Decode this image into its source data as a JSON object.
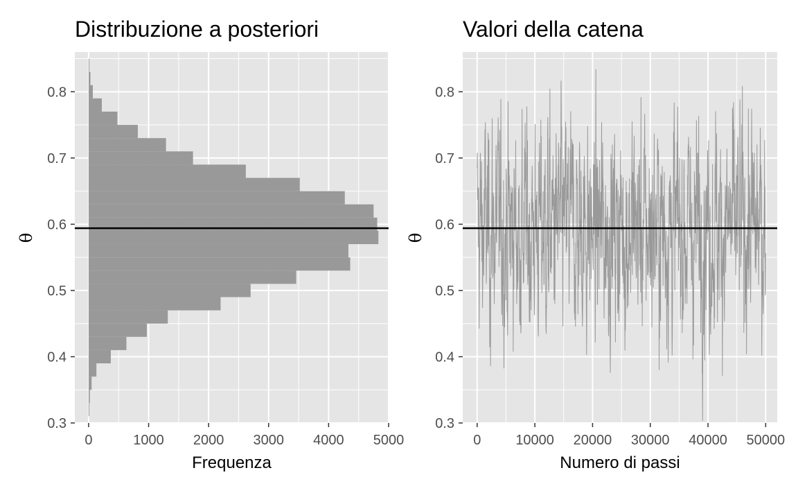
{
  "chart_data": [
    {
      "type": "bar",
      "title": "Distribuzione a posteriori",
      "xlabel": "Frequenza",
      "ylabel": "θ",
      "orientation": "horizontal",
      "xlim": [
        -230,
        5000
      ],
      "ylim": [
        0.3,
        0.86
      ],
      "x_ticks": [
        "0",
        "1000",
        "2000",
        "3000",
        "4000",
        "5000"
      ],
      "y_ticks": [
        "0.3",
        "0.4",
        "0.5",
        "0.6",
        "0.7",
        "0.8"
      ],
      "bin_lower": [
        0.31,
        0.33,
        0.35,
        0.37,
        0.39,
        0.41,
        0.43,
        0.45,
        0.47,
        0.49,
        0.51,
        0.53,
        0.55,
        0.57,
        0.59,
        0.61,
        0.63,
        0.65,
        0.67,
        0.69,
        0.71,
        0.73,
        0.75,
        0.77,
        0.79,
        0.81,
        0.83
      ],
      "counts": [
        10,
        20,
        50,
        130,
        370,
        630,
        970,
        1320,
        2200,
        2700,
        3460,
        4360,
        4330,
        4830,
        4810,
        4750,
        4270,
        3520,
        2620,
        1740,
        1290,
        820,
        480,
        220,
        70,
        30,
        10
      ],
      "hline": 0.594,
      "grid": true,
      "bar_color": "#999999"
    },
    {
      "type": "line",
      "title": "Valori della catena",
      "xlabel": "Numero di passi",
      "ylabel": "θ",
      "xlim": [
        -2500,
        52000
      ],
      "ylim": [
        0.3,
        0.86
      ],
      "x_ticks": [
        "0",
        "10000",
        "20000",
        "30000",
        "40000",
        "50000"
      ],
      "y_ticks": [
        "0.3",
        "0.4",
        "0.5",
        "0.6",
        "0.7",
        "0.8"
      ],
      "n_steps": 50000,
      "chain_mean": 0.594,
      "chain_range": [
        0.303,
        0.846
      ],
      "hline": 0.594,
      "grid": true,
      "line_color": "#999999"
    }
  ],
  "colors": {
    "panel_bg": "#e5e5e5",
    "grid": "#ffffff",
    "bars": "#999999",
    "trace": "#999999",
    "hline": "#000000"
  }
}
